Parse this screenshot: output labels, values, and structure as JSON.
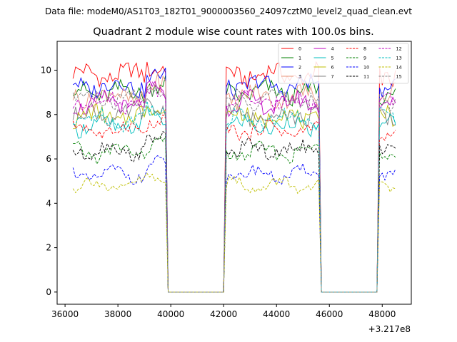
{
  "suptitle": "Data file: modeM0/AS1T03_182T01_9000003560_24097cztM0_level2_quad_clean.evt",
  "chart_data": {
    "type": "line",
    "title": "Quadrant 2 module wise count rates with 100.0s bins.",
    "xlabel": "",
    "ylabel": "",
    "x_offset_label": "+3.217e8",
    "xlim": [
      35700,
      49100
    ],
    "ylim": [
      -0.55,
      11.3
    ],
    "x_ticks": [
      36000,
      38000,
      40000,
      42000,
      44000,
      46000,
      48000
    ],
    "x_tick_labels": [
      "36000",
      "38000",
      "40000",
      "42000",
      "44000",
      "46000",
      "48000"
    ],
    "y_ticks": [
      0,
      2,
      4,
      6,
      8,
      10
    ],
    "y_tick_labels": [
      "0",
      "2",
      "4",
      "6",
      "8",
      "10"
    ],
    "grid": false,
    "legend_placement": "top-right",
    "x_segments": [
      {
        "start": 36300,
        "end": 39800,
        "count": 36
      },
      {
        "start": 39900,
        "end": 42000,
        "count": 22,
        "zero": true
      },
      {
        "start": 42100,
        "end": 45600,
        "count": 36
      },
      {
        "start": 45700,
        "end": 47800,
        "count": 22,
        "zero": true
      },
      {
        "start": 47900,
        "end": 48500,
        "count": 7
      }
    ],
    "series": [
      {
        "name": "0",
        "color": "#ff0000",
        "dash": false,
        "base": 9.8,
        "noise": 0.4,
        "phase": 0.3
      },
      {
        "name": "1",
        "color": "#008000",
        "dash": false,
        "base": 9.0,
        "noise": 0.4,
        "phase": 1.1
      },
      {
        "name": "2",
        "color": "#0000ff",
        "dash": false,
        "base": 9.3,
        "noise": 0.4,
        "phase": 2.0
      },
      {
        "name": "3",
        "color": "#e9967a",
        "dash": false,
        "base": 8.8,
        "noise": 0.45,
        "phase": 2.7
      },
      {
        "name": "4",
        "color": "#bf00bf",
        "dash": false,
        "base": 8.5,
        "noise": 0.4,
        "phase": 3.5
      },
      {
        "name": "5",
        "color": "#00bfbf",
        "dash": false,
        "base": 7.5,
        "noise": 0.35,
        "phase": 4.2
      },
      {
        "name": "6",
        "color": "#bfbf00",
        "dash": false,
        "base": 7.9,
        "noise": 0.4,
        "phase": 5.0
      },
      {
        "name": "7",
        "color": "#808080",
        "dash": false,
        "base": 8.0,
        "noise": 0.4,
        "phase": 5.8
      },
      {
        "name": "8",
        "color": "#ff0000",
        "dash": true,
        "base": 7.3,
        "noise": 0.3,
        "phase": 0.7
      },
      {
        "name": "9",
        "color": "#008000",
        "dash": true,
        "base": 6.3,
        "noise": 0.3,
        "phase": 1.6
      },
      {
        "name": "10",
        "color": "#0000ff",
        "dash": true,
        "base": 5.3,
        "noise": 0.25,
        "phase": 2.4
      },
      {
        "name": "11",
        "color": "#000000",
        "dash": true,
        "base": 6.4,
        "noise": 0.3,
        "phase": 3.1
      },
      {
        "name": "12",
        "color": "#bf00bf",
        "dash": true,
        "base": 8.6,
        "noise": 0.35,
        "phase": 3.9
      },
      {
        "name": "13",
        "color": "#00bfbf",
        "dash": true,
        "base": 7.8,
        "noise": 0.35,
        "phase": 4.6
      },
      {
        "name": "14",
        "color": "#bfbf00",
        "dash": true,
        "base": 4.8,
        "noise": 0.25,
        "phase": 5.4
      },
      {
        "name": "15",
        "color": "#808080",
        "dash": true,
        "base": 8.7,
        "noise": 0.35,
        "phase": 6.1
      }
    ]
  }
}
